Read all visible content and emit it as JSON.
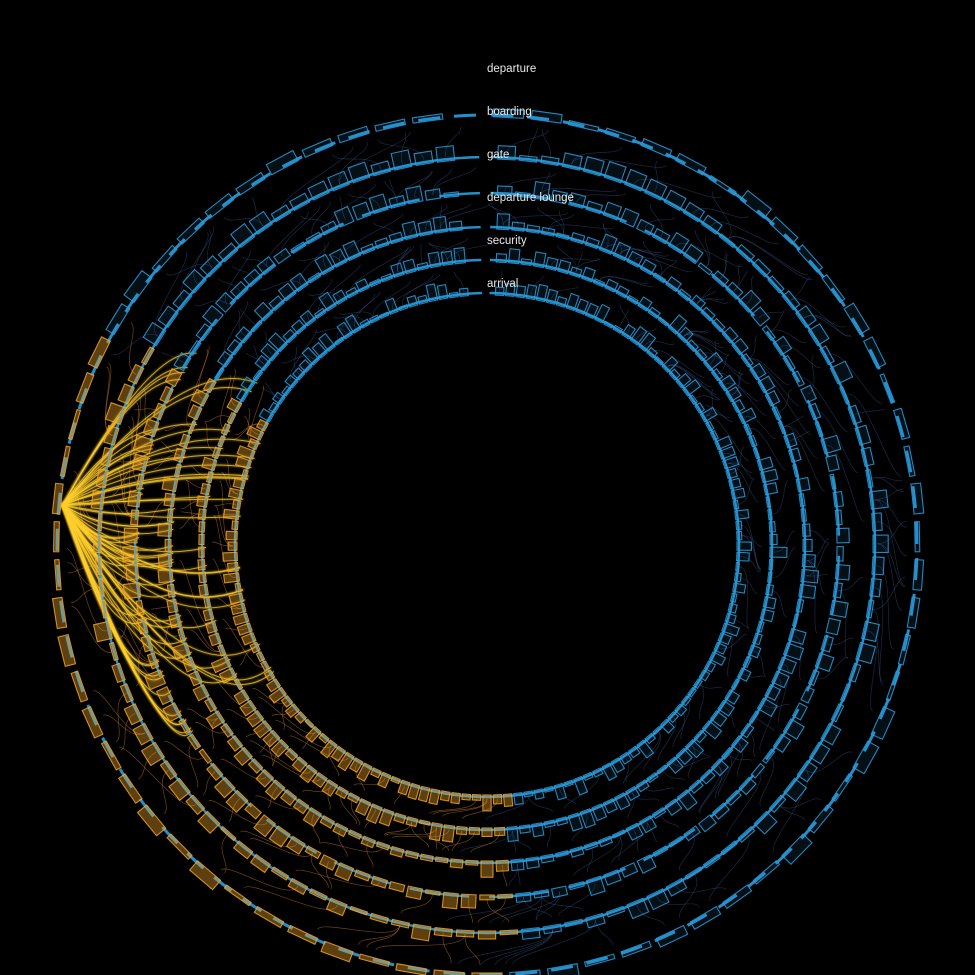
{
  "figure": {
    "background": "#000000",
    "colors": {
      "normal": "#2a9fe0",
      "normal_dim": "#1b5f8f",
      "link_normal": "#3a5a9a",
      "delayed": "#f7a82a",
      "delayed_bright": "#ffcf2e",
      "link_delayed": "#c8782a"
    }
  },
  "stages": [
    {
      "id": "departure",
      "label": "departure"
    },
    {
      "id": "boarding",
      "label": "boarding"
    },
    {
      "id": "gate",
      "label": "gate"
    },
    {
      "id": "departure_lounge",
      "label": "departure lounge"
    },
    {
      "id": "security",
      "label": "security"
    },
    {
      "id": "arrival",
      "label": "arrival"
    }
  ]
}
